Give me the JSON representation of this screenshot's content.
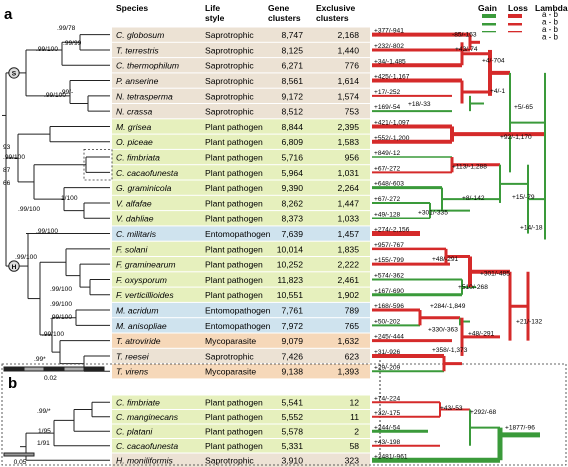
{
  "panel_a": {
    "label": "a",
    "headers": {
      "species": "Species",
      "lifestyle": [
        "Life",
        "style"
      ],
      "gene": [
        "Gene",
        "clusters"
      ],
      "excl": [
        "Exclusive",
        "clusters"
      ]
    },
    "rows": [
      {
        "species": "C. globosum",
        "lifestyle": "Saprotrophic",
        "gene": "8,747",
        "excl": "2,168",
        "color": "#ece2d4",
        "edge": "+377/-941"
      },
      {
        "species": "T. terrestris",
        "lifestyle": "Saprotrophic",
        "gene": "8,125",
        "excl": "1,440",
        "color": "#ece2d4",
        "edge": "+232/-802"
      },
      {
        "species": "C. thermophilum",
        "lifestyle": "Saprotrophic",
        "gene": "6,271",
        "excl": "776",
        "color": "#ece2d4",
        "edge": "+34/-1,485"
      },
      {
        "species": "P. anserine",
        "lifestyle": "Saprotrophic",
        "gene": "8,561",
        "excl": "1,614",
        "color": "#ece2d4",
        "edge": "+425/-1,167"
      },
      {
        "species": "N. tetrasperma",
        "lifestyle": "Saprotrophic",
        "gene": "9,172",
        "excl": "1,574",
        "color": "#ece2d4",
        "edge": "+17/-252"
      },
      {
        "species": "N. crassa",
        "lifestyle": "Saprotrophic",
        "gene": "8,512",
        "excl": "753",
        "color": "#ece2d4",
        "edge": "+169/-54"
      },
      {
        "species": "M. grisea",
        "lifestyle": "Plant pathogen",
        "gene": "8,844",
        "excl": "2,395",
        "color": "#e6f0bd",
        "edge": "+421/-1,097"
      },
      {
        "species": "O. piceae",
        "lifestyle": "Plant pathogen",
        "gene": "6,809",
        "excl": "1,583",
        "color": "#e6f0bd",
        "edge": "+552/-1,200"
      },
      {
        "species": "C. fimbriata",
        "lifestyle": "Plant pathogen",
        "gene": "5,716",
        "excl": "956",
        "color": "#e6f0bd",
        "edge": "+849/-12"
      },
      {
        "species": "C. cacaofunesta",
        "lifestyle": "Plant pathogen",
        "gene": "5,964",
        "excl": "1,031",
        "color": "#e6f0bd",
        "edge": "+67/-272"
      },
      {
        "species": "G. graminicola",
        "lifestyle": "Plant pathogen",
        "gene": "9,390",
        "excl": "2,264",
        "color": "#e6f0bd",
        "edge": "+648/-603"
      },
      {
        "species": "V. alfafae",
        "lifestyle": "Plant pathogen",
        "gene": "8,262",
        "excl": "1,447",
        "color": "#e6f0bd",
        "edge": "+67/-272"
      },
      {
        "species": "V. dahliae",
        "lifestyle": "Plant pathogen",
        "gene": "8,373",
        "excl": "1,033",
        "color": "#e6f0bd",
        "edge": "+49/-128"
      },
      {
        "species": "C. militaris",
        "lifestyle": "Entomopathogen",
        "gene": "7,639",
        "excl": "1,457",
        "color": "#cfe3ee",
        "edge": "+274/-2,156"
      },
      {
        "species": "F. solani",
        "lifestyle": "Plant pathogen",
        "gene": "10,014",
        "excl": "1,835",
        "color": "#e6f0bd",
        "edge": "+957/-767"
      },
      {
        "species": "F. graminearum",
        "lifestyle": "Plant pathogen",
        "gene": "10,252",
        "excl": "2,222",
        "color": "#e6f0bd",
        "edge": "+155/-799"
      },
      {
        "species": "F. oxysporum",
        "lifestyle": "Plant pathogen",
        "gene": "11,823",
        "excl": "2,461",
        "color": "#e6f0bd",
        "edge": "+574/-362"
      },
      {
        "species": "F. verticillioides",
        "lifestyle": "Plant pathogen",
        "gene": "10,551",
        "excl": "1,902",
        "color": "#e6f0bd",
        "edge": "+167/-690"
      },
      {
        "species": "M. acridum",
        "lifestyle": "Entomopathogen",
        "gene": "7,761",
        "excl": "789",
        "color": "#cfe3ee",
        "edge": "+168/-596"
      },
      {
        "species": "M. anisopliae",
        "lifestyle": "Entomopathogen",
        "gene": "7,972",
        "excl": "765",
        "color": "#cfe3ee",
        "edge": "+50/-202"
      },
      {
        "species": "T. atroviride",
        "lifestyle": "Mycoparasite",
        "gene": "9,079",
        "excl": "1,632",
        "color": "#f6d8b9",
        "edge": "+245/-444"
      },
      {
        "species": "T. reesei",
        "lifestyle": "Saprotrophic",
        "gene": "7,426",
        "excl": "623",
        "color": "#ece2d4",
        "edge": "+31/-926"
      },
      {
        "species": "T. virens",
        "lifestyle": "Mycoparasite",
        "gene": "9,138",
        "excl": "1,393",
        "color": "#f6d8b9",
        "edge": "+29/-209"
      }
    ],
    "internal_labels": [
      {
        "text": "-85/-163",
        "kind": "loss"
      },
      {
        "text": "+43/-74",
        "kind": "loss"
      },
      {
        "text": "+4/-704",
        "kind": "loss"
      },
      {
        "text": "+4/-1",
        "kind": "gain"
      },
      {
        "text": "+18/-33",
        "kind": "loss"
      },
      {
        "text": "+5/-65",
        "kind": "gain"
      },
      {
        "text": "+92/-1,170",
        "kind": "loss"
      },
      {
        "text": "+113/-1,288",
        "kind": "loss"
      },
      {
        "text": "+8/-142",
        "kind": "gain"
      },
      {
        "text": "+301/-335",
        "kind": "gain"
      },
      {
        "text": "+15/-79",
        "kind": "gain"
      },
      {
        "text": "+14/-18",
        "kind": "gain"
      },
      {
        "text": "+48/-291",
        "kind": "loss"
      },
      {
        "text": "+510/-268",
        "kind": "gain"
      },
      {
        "text": "+301/-485",
        "kind": "loss"
      },
      {
        "text": "+21/-132",
        "kind": "loss"
      },
      {
        "text": "+284/-1,849",
        "kind": "loss"
      },
      {
        "text": "+330/-363",
        "kind": "gain"
      },
      {
        "text": "+358/-1,373",
        "kind": "loss"
      },
      {
        "text": "+48/-291",
        "kind": "loss"
      }
    ],
    "support_labels": [
      ".99/78",
      ".99/99",
      ".99/100",
      ".99/100",
      ".99/-",
      "93",
      ".99/100",
      "87",
      "66",
      "1/100",
      ".99/100",
      ".99/100",
      ".99/100",
      ".99/100",
      ".99/100",
      ".99/100",
      ".99/100",
      ".99*",
      ".99/*",
      "1/95",
      "1/91"
    ],
    "node_markers": [
      "S",
      "H"
    ],
    "scale": "0.02"
  },
  "legend": {
    "gain": "Gain",
    "loss": "Loss",
    "lambda": "Lambda",
    "items": [
      "a - b",
      "a - b",
      "a - b",
      "a - b"
    ]
  },
  "panel_b": {
    "label": "b",
    "rows": [
      {
        "species": "C. fimbriate",
        "lifestyle": "Plant pathogen",
        "gene": "5,541",
        "excl": "12",
        "color": "#e6f0bd",
        "edge": "+74/-224"
      },
      {
        "species": "C. manginecans",
        "lifestyle": "Plant pathogen",
        "gene": "5,552",
        "excl": "11",
        "color": "#e6f0bd",
        "edge": "+32/-175"
      },
      {
        "species": "C. platani",
        "lifestyle": "Plant pathogen",
        "gene": "5,578",
        "excl": "2",
        "color": "#e6f0bd",
        "edge": "+244/-54"
      },
      {
        "species": "C. cacaofunesta",
        "lifestyle": "Plant pathogen",
        "gene": "5,331",
        "excl": "58",
        "color": "#e6f0bd",
        "edge": "+43/-198"
      },
      {
        "species": "H. moniliformis",
        "lifestyle": "Saprotrophic",
        "gene": "3,910",
        "excl": "323",
        "color": "#ece2d4",
        "edge": "+2481/-961"
      }
    ],
    "internal_labels": [
      {
        "text": "+43/-53",
        "kind": "loss"
      },
      {
        "text": "+292/-68",
        "kind": "gain"
      },
      {
        "text": "+1877/-96",
        "kind": "gain"
      }
    ],
    "scale": "0.05"
  }
}
